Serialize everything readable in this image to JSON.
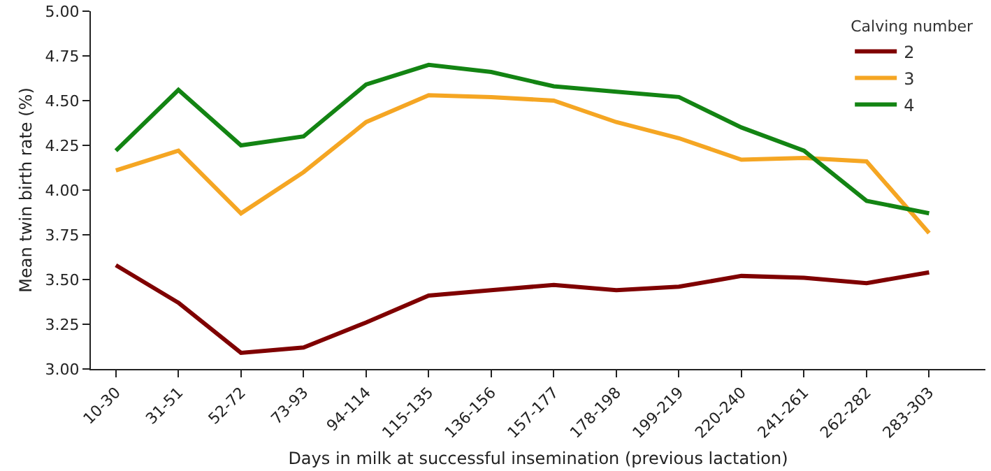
{
  "chart_data": {
    "type": "line",
    "xlabel": "Days in milk at successful insemination (previous lactation)",
    "ylabel": "Mean twin birth rate (%)",
    "legend_title": "Calving number",
    "legend": "top right",
    "grid": false,
    "marker": "none",
    "line_style": "solid",
    "categories": [
      "10-30",
      "31-51",
      "52-72",
      "73-93",
      "94-114",
      "115-135",
      "136-156",
      "157-177",
      "178-198",
      "199-219",
      "220-240",
      "241-261",
      "262-282",
      "283-303"
    ],
    "ylim": [
      3.0,
      5.0
    ],
    "yticks": [
      {
        "value": 3.0,
        "label": "3.00"
      },
      {
        "value": 3.25,
        "label": "3.25"
      },
      {
        "value": 3.5,
        "label": "3.50"
      },
      {
        "value": 3.75,
        "label": "3.75"
      },
      {
        "value": 4.0,
        "label": "4.00"
      },
      {
        "value": 4.25,
        "label": "4.25"
      },
      {
        "value": 4.5,
        "label": "4.50"
      },
      {
        "value": 4.75,
        "label": "4.75"
      },
      {
        "value": 5.0,
        "label": "5.00"
      }
    ],
    "series": [
      {
        "name": "2",
        "color": "#7f0000",
        "values": [
          3.58,
          3.37,
          3.09,
          3.12,
          3.26,
          3.41,
          3.44,
          3.47,
          3.44,
          3.46,
          3.52,
          3.51,
          3.48,
          3.54
        ]
      },
      {
        "name": "3",
        "color": "#f5a623",
        "values": [
          4.11,
          4.22,
          3.87,
          4.1,
          4.38,
          4.53,
          4.52,
          4.5,
          4.38,
          4.29,
          4.17,
          4.18,
          4.16,
          3.76
        ]
      },
      {
        "name": "4",
        "color": "#138413",
        "values": [
          4.22,
          4.56,
          4.25,
          4.3,
          4.59,
          4.7,
          4.66,
          4.58,
          4.55,
          4.52,
          4.35,
          4.22,
          3.94,
          3.87
        ]
      }
    ]
  }
}
